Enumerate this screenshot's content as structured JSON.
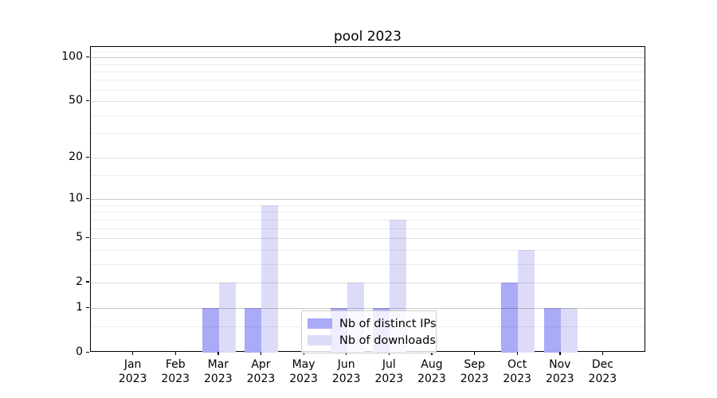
{
  "title": "pool 2023",
  "colors": {
    "background": "#ffffff",
    "axis": "#000000",
    "grid_minor": "#ececec",
    "grid_major": "#e0e0e0",
    "grid_decade": "#c9c9c9",
    "legend_border": "#cccccc"
  },
  "legend": {
    "position": "lower center"
  },
  "chart_data": {
    "type": "bar",
    "title": "pool 2023",
    "categories": [
      "Jan 2023",
      "Feb 2023",
      "Mar 2023",
      "Apr 2023",
      "May 2023",
      "Jun 2023",
      "Jul 2023",
      "Aug 2023",
      "Sep 2023",
      "Oct 2023",
      "Nov 2023",
      "Dec 2023"
    ],
    "series": [
      {
        "name": "Nb of distinct IPs",
        "color": "#aaaaf7",
        "values": [
          0,
          0,
          1,
          1,
          0,
          1,
          1,
          0,
          0,
          2,
          1,
          0
        ]
      },
      {
        "name": "Nb of downloads",
        "color": "#dcdcf8",
        "values": [
          0,
          0,
          2,
          9,
          0,
          2,
          7,
          0,
          0,
          4,
          1,
          0
        ]
      }
    ],
    "xlabel": "",
    "ylabel": "",
    "y_scale": "log10(1+x)",
    "y_ticks": [
      0,
      1,
      2,
      5,
      10,
      20,
      50,
      100
    ],
    "y_minor_ticks": [
      0.5,
      3,
      4,
      6,
      7,
      8,
      9,
      15,
      30,
      40,
      60,
      70,
      80,
      90,
      110
    ],
    "ylim": [
      0,
      118
    ],
    "grid": true,
    "legend_position": "lower center"
  }
}
